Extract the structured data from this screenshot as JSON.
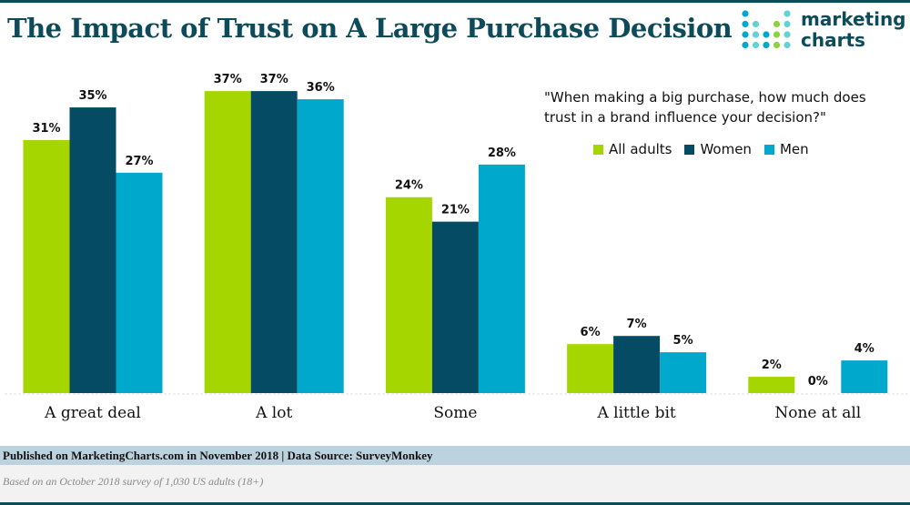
{
  "brand": {
    "logo_text_1": "marketing",
    "logo_text_2": "charts"
  },
  "chart_data": {
    "type": "bar",
    "title": "The Impact of Trust on A Large Purchase Decision",
    "subtitle": "\"When making a big purchase, how much does trust in a brand influence your decision?\"",
    "subtitle_lines": [
      "\"When making a big purchase, how much does",
      "trust in a brand influence your decision?\""
    ],
    "categories": [
      "A great deal",
      "A lot",
      "Some",
      "A little bit",
      "None at all"
    ],
    "series": [
      {
        "name": "All adults",
        "values": [
          31,
          37,
          24,
          6,
          2
        ]
      },
      {
        "name": "Women",
        "values": [
          35,
          37,
          21,
          7,
          0
        ]
      },
      {
        "name": "Men",
        "values": [
          27,
          36,
          28,
          5,
          4
        ]
      }
    ],
    "value_suffix": "%",
    "ylim": [
      0,
      37
    ],
    "grid": false,
    "legend": "top-right"
  },
  "footer": {
    "source": "Published on MarketingCharts.com in November 2018 | Data Source: SurveyMonkey",
    "note": "Based on an October 2018 survey of 1,030 US adults (18+)"
  }
}
